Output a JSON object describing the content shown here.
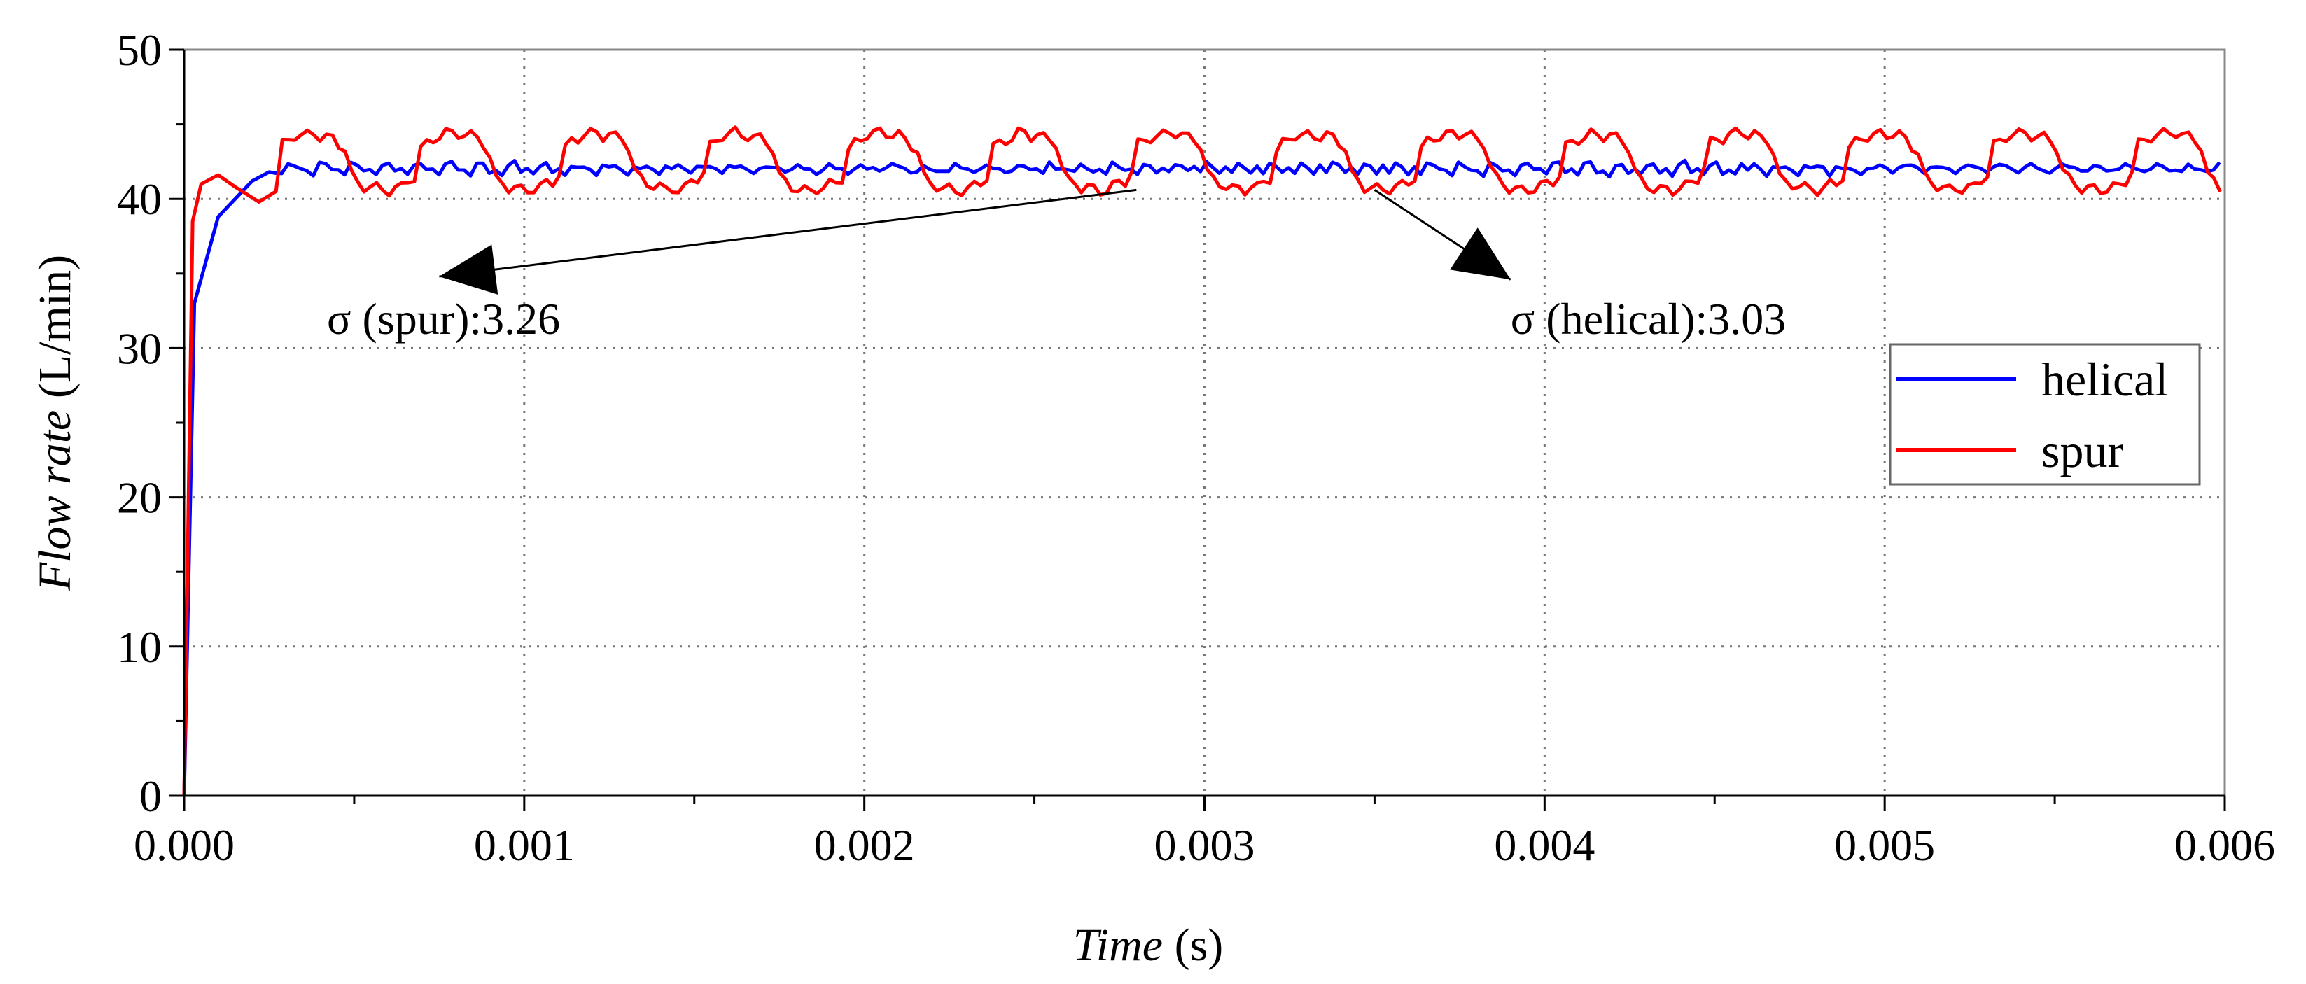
{
  "chart_data": {
    "type": "line",
    "title": "",
    "xlabel_italic": "Time",
    "xlabel_unit": " (s)",
    "ylabel_italic": "Flow rate",
    "ylabel_unit": " (L/min)",
    "xlim": [
      0,
      0.006
    ],
    "ylim": [
      0,
      50
    ],
    "xticks": [
      0,
      0.001,
      0.002,
      0.003,
      0.004,
      0.005,
      0.006
    ],
    "xtick_labels": [
      "0.000",
      "0.001",
      "0.002",
      "0.003",
      "0.004",
      "0.005",
      "0.006"
    ],
    "yticks": [
      0,
      10,
      20,
      30,
      40,
      50
    ],
    "ytick_labels": [
      "0",
      "10",
      "20",
      "30",
      "40",
      "50"
    ],
    "grid": true,
    "legend_position": "right",
    "series": [
      {
        "name": "helical",
        "color": "#0000ff",
        "x": [
          0,
          3e-05,
          0.0001,
          0.0002,
          0.00025
        ],
        "y": [
          0,
          33,
          38.8,
          41.2,
          41.8
        ],
        "steady": {
          "start": 0.00025,
          "end": 0.006,
          "period": 9.3e-05,
          "base": 42.0,
          "amp": 0.7,
          "spike": 0.5
        }
      },
      {
        "name": "spur",
        "color": "#ff0000",
        "x": [
          0,
          2.5e-05,
          5e-05,
          0.0001,
          0.00015,
          0.00022,
          0.00027
        ],
        "y": [
          0,
          38.5,
          41.0,
          41.6,
          40.8,
          39.8,
          40.5
        ],
        "steady": {
          "start": 0.00027,
          "end": 0.006,
          "period": 0.00042,
          "base": 42.5,
          "amp": 1.85,
          "ripple": 0.35
        }
      }
    ],
    "annotations": [
      {
        "text": "σ (spur):3.26",
        "x": 0.00042,
        "y": 32.0,
        "arrow_from": [
          0.0028,
          40.6
        ],
        "arrow_to": [
          0.00075,
          34.8
        ],
        "label": "spur-std-annotation"
      },
      {
        "text": "σ (helical):3.03",
        "x": 0.0039,
        "y": 32.0,
        "arrow_from": [
          0.0035,
          40.6
        ],
        "arrow_to": [
          0.0039,
          34.6
        ],
        "label": "helical-std-annotation"
      }
    ]
  }
}
